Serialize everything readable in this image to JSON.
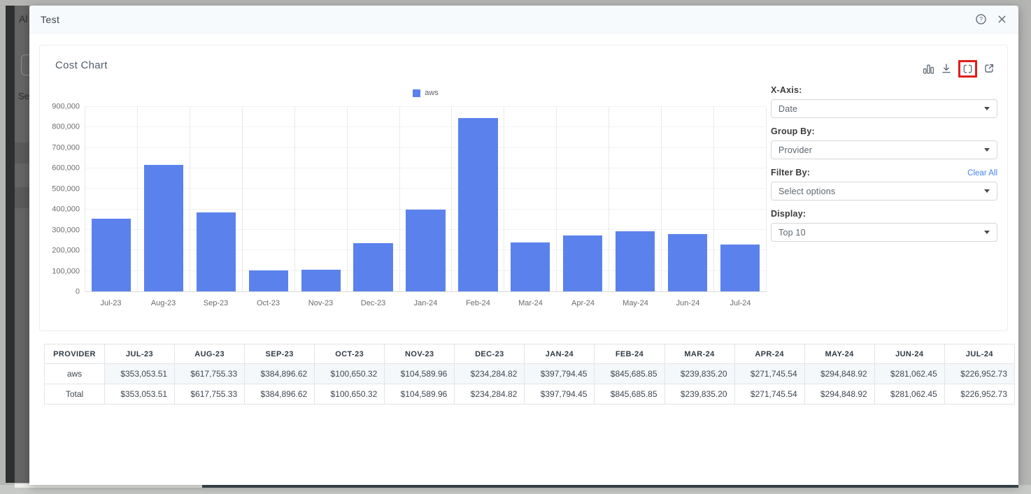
{
  "background": {
    "app_text_top": "Al",
    "app_text_side": "Se"
  },
  "modal": {
    "title": "Test",
    "header_icons": [
      "help-icon",
      "close-icon"
    ]
  },
  "card": {
    "title": "Cost Chart",
    "toolbar_icons": [
      "bar-chart-icon",
      "download-icon",
      "fullscreen-icon",
      "open-external-icon"
    ]
  },
  "controls": {
    "x_axis": {
      "label": "X-Axis:",
      "value": "Date"
    },
    "group_by": {
      "label": "Group By:",
      "value": "Provider"
    },
    "filter_by": {
      "label": "Filter By:",
      "value": "Select options",
      "clear_all": "Clear All"
    },
    "display": {
      "label": "Display:",
      "value": "Top 10"
    }
  },
  "chart_data": {
    "type": "bar",
    "title": "Cost Chart",
    "legend": [
      "aws"
    ],
    "legend_position": "top",
    "categories": [
      "Jul-23",
      "Aug-23",
      "Sep-23",
      "Oct-23",
      "Nov-23",
      "Dec-23",
      "Jan-24",
      "Feb-24",
      "Mar-24",
      "Apr-24",
      "May-24",
      "Jun-24",
      "Jul-24"
    ],
    "series": [
      {
        "name": "aws",
        "values": [
          353053.51,
          617755.33,
          384896.62,
          100650.32,
          104589.96,
          234284.82,
          397794.45,
          845685.85,
          239835.2,
          271745.54,
          294848.92,
          281062.45,
          226952.73
        ]
      }
    ],
    "xlabel": "",
    "ylabel": "",
    "ylim": [
      0,
      900000
    ],
    "ytick_step": 100000,
    "grid": true,
    "bar_color": "#5b82ec"
  },
  "table": {
    "columns": [
      "PROVIDER",
      "JUL-23",
      "AUG-23",
      "SEP-23",
      "OCT-23",
      "NOV-23",
      "DEC-23",
      "JAN-24",
      "FEB-24",
      "MAR-24",
      "APR-24",
      "MAY-24",
      "JUN-24",
      "JUL-24"
    ],
    "rows": [
      {
        "provider": "aws",
        "highlight": true,
        "values": [
          "$353,053.51",
          "$617,755.33",
          "$384,896.62",
          "$100,650.32",
          "$104,589.96",
          "$234,284.82",
          "$397,794.45",
          "$845,685.85",
          "$239,835.20",
          "$271,745.54",
          "$294,848.92",
          "$281,062.45",
          "$226,952.73"
        ]
      },
      {
        "provider": "Total",
        "highlight": false,
        "values": [
          "$353,053.51",
          "$617,755.33",
          "$384,896.62",
          "$100,650.32",
          "$104,589.96",
          "$234,284.82",
          "$397,794.45",
          "$845,685.85",
          "$239,835.20",
          "$271,745.54",
          "$294,848.92",
          "$281,062.45",
          "$226,952.73"
        ]
      }
    ]
  },
  "colors": {
    "bar": "#5b82ec",
    "link": "#4285f4",
    "highlight_box": "#e11d1d",
    "icon": "#5f6b78"
  }
}
